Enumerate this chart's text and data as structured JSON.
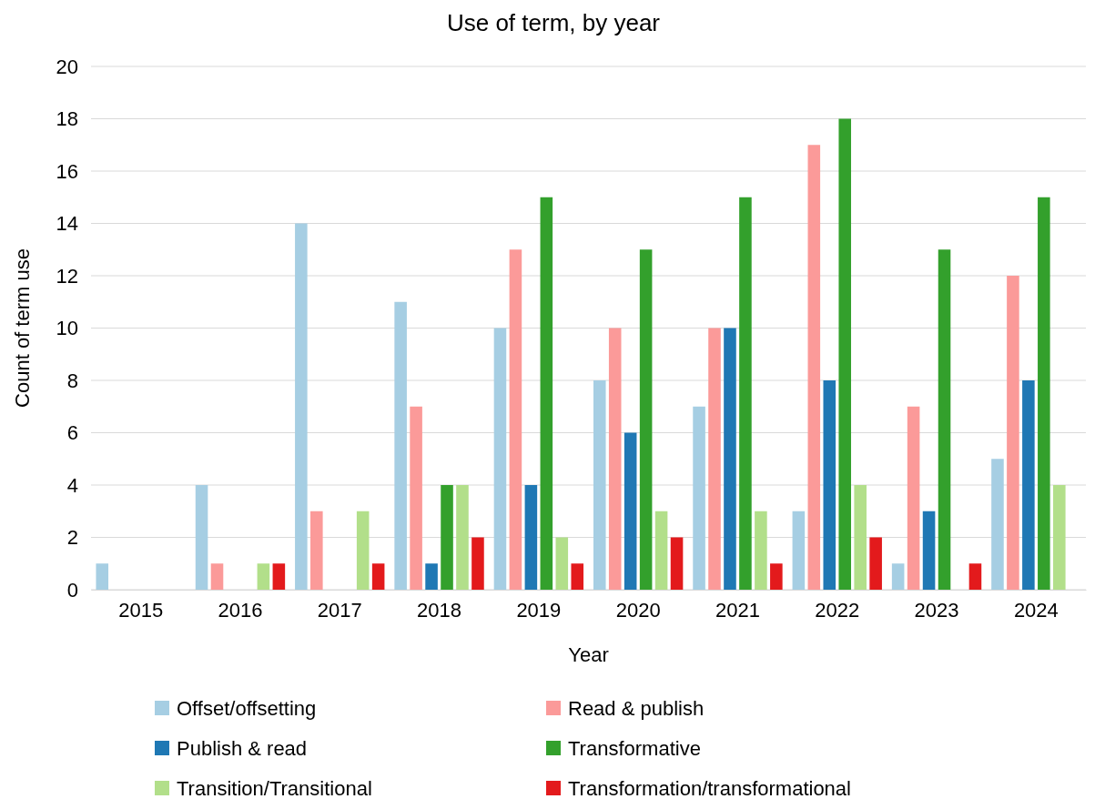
{
  "chart_data": {
    "type": "bar",
    "title": "Use of term, by year",
    "xlabel": "Year",
    "ylabel": "Count of term use",
    "categories": [
      "2015",
      "2016",
      "2017",
      "2018",
      "2019",
      "2020",
      "2021",
      "2022",
      "2023",
      "2024"
    ],
    "series": [
      {
        "name": "Offset/offsetting",
        "color": "#a6cee3",
        "values": [
          1,
          4,
          14,
          11,
          10,
          8,
          7,
          3,
          1,
          5
        ]
      },
      {
        "name": "Read & publish",
        "color": "#fb9a99",
        "values": [
          0,
          1,
          3,
          7,
          13,
          10,
          10,
          17,
          7,
          12
        ]
      },
      {
        "name": "Publish & read",
        "color": "#1f78b4",
        "values": [
          0,
          0,
          0,
          1,
          4,
          6,
          10,
          8,
          3,
          8
        ]
      },
      {
        "name": "Transformative",
        "color": "#33a02c",
        "values": [
          0,
          0,
          0,
          4,
          15,
          13,
          15,
          18,
          13,
          15
        ]
      },
      {
        "name": "Transition/Transitional",
        "color": "#b2df8a",
        "values": [
          0,
          1,
          3,
          4,
          2,
          3,
          3,
          4,
          0,
          4
        ]
      },
      {
        "name": "Transformation/transformational",
        "color": "#e31a1c",
        "values": [
          0,
          1,
          1,
          2,
          1,
          2,
          1,
          2,
          1,
          0
        ]
      }
    ],
    "ylim": [
      0,
      20
    ],
    "yticks": [
      0,
      2,
      4,
      6,
      8,
      10,
      12,
      14,
      16,
      18,
      20
    ],
    "grid": "y",
    "legend": "bottom"
  }
}
